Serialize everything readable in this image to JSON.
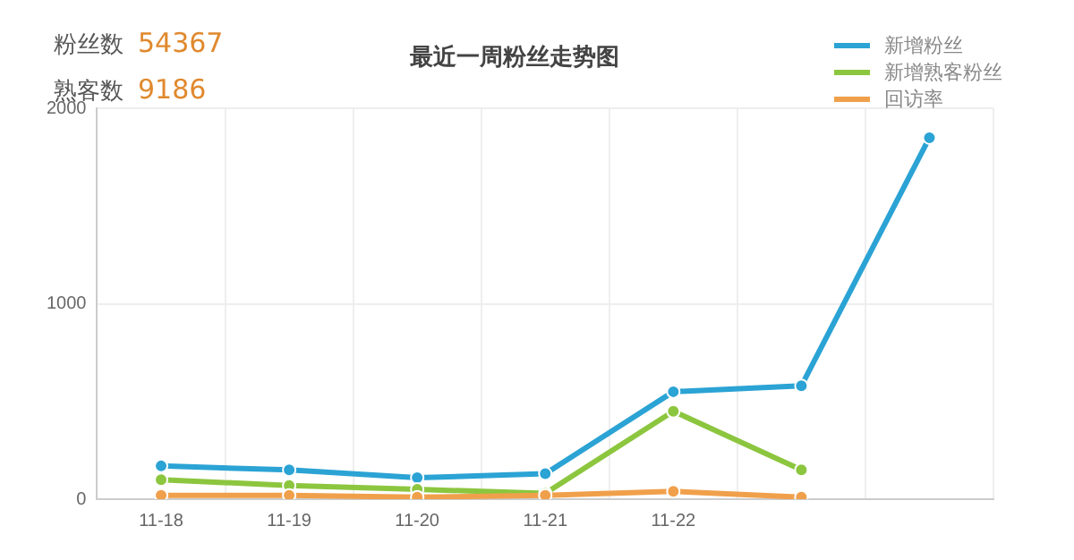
{
  "chart_data": {
    "type": "line",
    "title": "最近一周粉丝走势图",
    "annotations": [
      "粉丝数 54367",
      "熟客数 9186"
    ],
    "categories": [
      "11-18",
      "11-19",
      "11-20",
      "11-21",
      "11-22",
      null,
      null
    ],
    "series": [
      {
        "name": "新增粉丝",
        "color": "#2ba3d4",
        "values": [
          170,
          150,
          110,
          130,
          550,
          580,
          1850
        ]
      },
      {
        "name": "新增熟客粉丝",
        "color": "#8cc63f",
        "values": [
          100,
          70,
          50,
          30,
          450,
          150,
          null
        ]
      },
      {
        "name": "回访率",
        "color": "#f0a04b",
        "values": [
          20,
          20,
          10,
          20,
          40,
          10,
          null
        ]
      }
    ],
    "ylim": [
      0,
      2000
    ],
    "yticks": [
      0,
      1000,
      2000
    ],
    "grid": true,
    "legend": "top right",
    "marker": "circle",
    "line_style": "solid"
  }
}
